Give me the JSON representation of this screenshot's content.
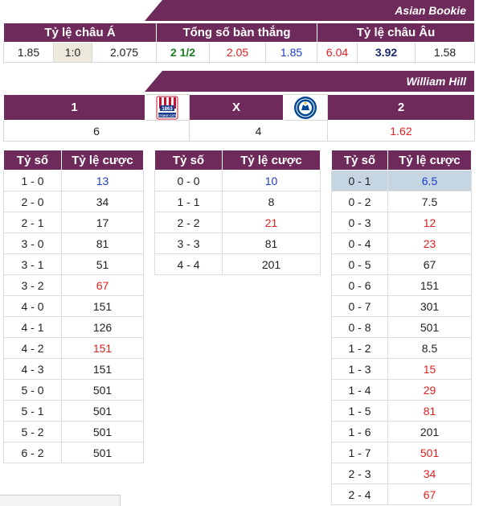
{
  "asian": {
    "banner": "Asian Bookie",
    "headers": [
      "Tỷ lệ châu Á",
      "Tổng số bàn thắng",
      "Tỷ lệ châu Âu"
    ],
    "values": [
      "1.85",
      "1:0",
      "2.075",
      "2 1/2",
      "2.05",
      "1.85",
      "6.04",
      "3.92",
      "1.58"
    ]
  },
  "wh": {
    "banner": "William Hill",
    "home_label": "1",
    "draw_label": "X",
    "away_label": "2",
    "home_odds": "6",
    "draw_odds": "4",
    "away_odds": "1.62",
    "home_logo_text": "1863",
    "home_logo_banner": "STOKE CITY"
  },
  "score_headers": {
    "score": "Tỷ số",
    "odds": "Tỷ lệ cược"
  },
  "home_scores": [
    {
      "s": "1 - 0",
      "o": "13",
      "c": "blue"
    },
    {
      "s": "2 - 0",
      "o": "34",
      "c": ""
    },
    {
      "s": "2 - 1",
      "o": "17",
      "c": ""
    },
    {
      "s": "3 - 0",
      "o": "81",
      "c": ""
    },
    {
      "s": "3 - 1",
      "o": "51",
      "c": ""
    },
    {
      "s": "3 - 2",
      "o": "67",
      "c": "red"
    },
    {
      "s": "4 - 0",
      "o": "151",
      "c": ""
    },
    {
      "s": "4 - 1",
      "o": "126",
      "c": ""
    },
    {
      "s": "4 - 2",
      "o": "151",
      "c": "red"
    },
    {
      "s": "4 - 3",
      "o": "151",
      "c": ""
    },
    {
      "s": "5 - 0",
      "o": "501",
      "c": ""
    },
    {
      "s": "5 - 1",
      "o": "501",
      "c": ""
    },
    {
      "s": "5 - 2",
      "o": "501",
      "c": ""
    },
    {
      "s": "6 - 2",
      "o": "501",
      "c": ""
    }
  ],
  "draw_scores": [
    {
      "s": "0 - 0",
      "o": "10",
      "c": "blue"
    },
    {
      "s": "1 - 1",
      "o": "8",
      "c": ""
    },
    {
      "s": "2 - 2",
      "o": "21",
      "c": "red"
    },
    {
      "s": "3 - 3",
      "o": "81",
      "c": ""
    },
    {
      "s": "4 - 4",
      "o": "201",
      "c": ""
    }
  ],
  "away_scores": [
    {
      "s": "0 - 1",
      "o": "6.5",
      "c": "blue",
      "hl": true
    },
    {
      "s": "0 - 2",
      "o": "7.5",
      "c": ""
    },
    {
      "s": "0 - 3",
      "o": "12",
      "c": "red"
    },
    {
      "s": "0 - 4",
      "o": "23",
      "c": "red"
    },
    {
      "s": "0 - 5",
      "o": "67",
      "c": ""
    },
    {
      "s": "0 - 6",
      "o": "151",
      "c": ""
    },
    {
      "s": "0 - 7",
      "o": "301",
      "c": ""
    },
    {
      "s": "0 - 8",
      "o": "501",
      "c": ""
    },
    {
      "s": "1 - 2",
      "o": "8.5",
      "c": ""
    },
    {
      "s": "1 - 3",
      "o": "15",
      "c": "red"
    },
    {
      "s": "1 - 4",
      "o": "29",
      "c": "red"
    },
    {
      "s": "1 - 5",
      "o": "81",
      "c": "red"
    },
    {
      "s": "1 - 6",
      "o": "201",
      "c": ""
    },
    {
      "s": "1 - 7",
      "o": "501",
      "c": "red"
    },
    {
      "s": "2 - 3",
      "o": "34",
      "c": "red"
    },
    {
      "s": "2 - 4",
      "o": "67",
      "c": "red"
    }
  ],
  "colors": {
    "header_bg": "#6d2a5b",
    "red": "#e02020",
    "blue": "#1a3bcc",
    "green": "#1e7d1e",
    "highlight": "#c5d6e2"
  }
}
